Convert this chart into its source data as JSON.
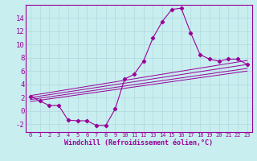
{
  "xlabel": "Windchill (Refroidissement éolien,°C)",
  "bg_color": "#c8eef0",
  "grid_color": "#b0d8dc",
  "line_color": "#990099",
  "xlim": [
    -0.5,
    23.5
  ],
  "ylim": [
    -3.2,
    16.0
  ],
  "x_ticks": [
    0,
    1,
    2,
    3,
    4,
    5,
    6,
    7,
    8,
    9,
    10,
    11,
    12,
    13,
    14,
    15,
    16,
    17,
    18,
    19,
    20,
    21,
    22,
    23
  ],
  "y_ticks": [
    -2,
    0,
    2,
    4,
    6,
    8,
    10,
    12,
    14
  ],
  "curve1_x": [
    0,
    1,
    2,
    3,
    4,
    5,
    6,
    7,
    8,
    9,
    10,
    11,
    12,
    13,
    14,
    15,
    16,
    17,
    18,
    19,
    20,
    21,
    22,
    23
  ],
  "curve1_y": [
    2.2,
    1.5,
    0.8,
    0.8,
    -1.4,
    -1.5,
    -1.5,
    -2.2,
    -2.2,
    0.3,
    4.8,
    5.5,
    7.5,
    11.0,
    13.5,
    15.3,
    15.5,
    11.8,
    8.5,
    7.8,
    7.5,
    7.8,
    7.8,
    7.0
  ],
  "line1_x": [
    0,
    23
  ],
  "line1_y": [
    2.0,
    7.0
  ],
  "line2_x": [
    0,
    23
  ],
  "line2_y": [
    2.3,
    7.6
  ],
  "line3_x": [
    0,
    23
  ],
  "line3_y": [
    1.7,
    6.4
  ],
  "line4_x": [
    0,
    23
  ],
  "line4_y": [
    1.4,
    6.0
  ]
}
